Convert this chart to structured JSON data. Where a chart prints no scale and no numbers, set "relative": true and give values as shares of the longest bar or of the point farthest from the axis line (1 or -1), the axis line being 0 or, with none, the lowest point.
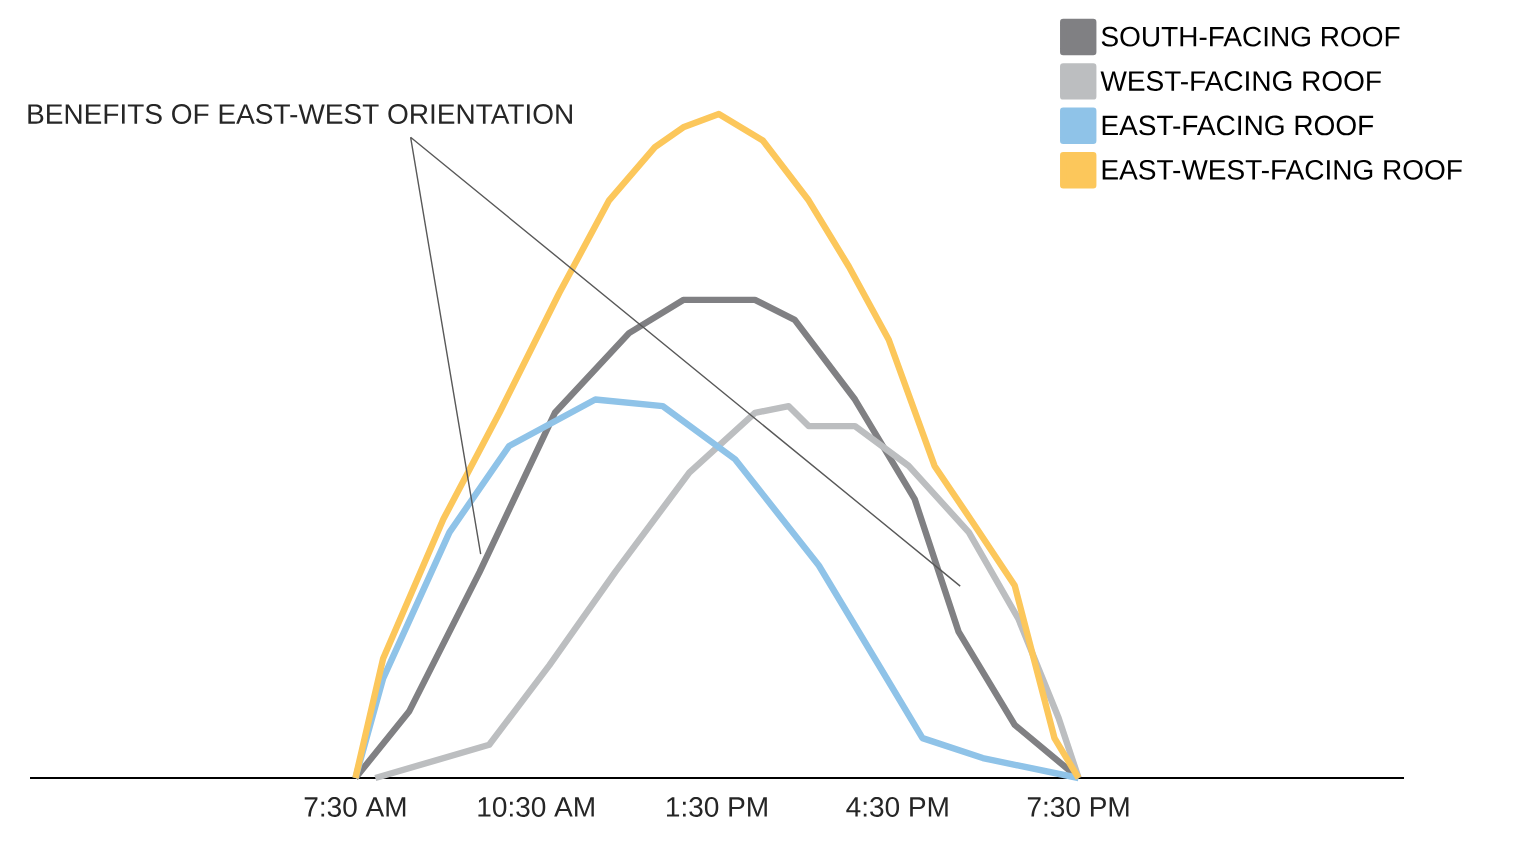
{
  "chart_data": {
    "type": "line",
    "relative": true,
    "legend": "top right",
    "xlim": [
      2.1,
      24.9
    ],
    "xticks": [
      {
        "value": 7.5,
        "label": "7:30 AM"
      },
      {
        "value": 10.5,
        "label": "10:30 AM"
      },
      {
        "value": 13.5,
        "label": "1:30 PM"
      },
      {
        "value": 16.5,
        "label": "4:30 PM"
      },
      {
        "value": 19.5,
        "label": "7:30 PM"
      }
    ],
    "annotations": [
      "BENEFITS OF EAST-WEST ORIENTATION"
    ],
    "series": [
      {
        "name": "SOUTH-FACING ROOF",
        "color": "#808083",
        "x": [
          7.5,
          8.39,
          9.56,
          10.81,
          12.04,
          12.94,
          13.53,
          14.13,
          14.79,
          15.79,
          16.78,
          17.51,
          18.44,
          19.5
        ],
        "values": [
          0,
          0.1,
          0.31,
          0.55,
          0.67,
          0.72,
          0.72,
          0.72,
          0.69,
          0.57,
          0.42,
          0.22,
          0.08,
          0
        ]
      },
      {
        "name": "WEST-FACING ROOF",
        "color": "#bcbec0",
        "x": [
          7.83,
          9.72,
          10.72,
          11.81,
          13.04,
          14.13,
          14.69,
          15.02,
          15.79,
          16.68,
          17.68,
          18.5,
          19.17,
          19.5
        ],
        "values": [
          0,
          0.05,
          0.17,
          0.31,
          0.46,
          0.55,
          0.56,
          0.53,
          0.53,
          0.47,
          0.37,
          0.24,
          0.09,
          0
        ]
      },
      {
        "name": "EAST-FACING ROOF",
        "color": "#8fc3e8",
        "x": [
          7.5,
          7.96,
          9.06,
          10.05,
          11.48,
          12.6,
          13.8,
          15.19,
          16.25,
          16.91,
          17.91,
          19.5
        ],
        "values": [
          0,
          0.15,
          0.37,
          0.5,
          0.57,
          0.56,
          0.48,
          0.32,
          0.16,
          0.06,
          0.03,
          0
        ]
      },
      {
        "name": "EAST-WEST-FACING ROOF",
        "color": "#fcc75b",
        "x": [
          7.5,
          7.96,
          8.96,
          9.89,
          10.88,
          11.71,
          12.47,
          12.94,
          13.53,
          14.26,
          15.02,
          15.69,
          16.35,
          17.11,
          17.78,
          18.44,
          19.1,
          19.5
        ],
        "values": [
          0,
          0.18,
          0.39,
          0.55,
          0.73,
          0.87,
          0.95,
          0.98,
          1,
          0.96,
          0.87,
          0.77,
          0.66,
          0.47,
          0.38,
          0.29,
          0.06,
          0
        ]
      }
    ]
  }
}
